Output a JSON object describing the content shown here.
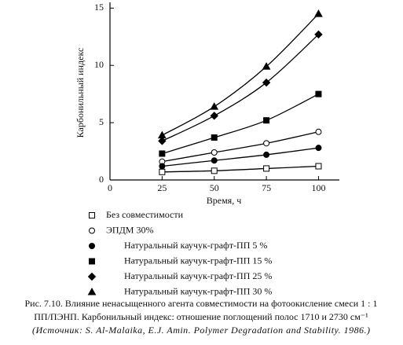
{
  "chart_data": {
    "type": "line",
    "x_label": "Время, ч",
    "y_label": "Карбонильный индекс",
    "x": [
      25,
      50,
      75,
      100
    ],
    "xlim": [
      0,
      110
    ],
    "ylim": [
      0,
      15.5
    ],
    "xticks": [
      0,
      25,
      50,
      75,
      100
    ],
    "yticks": [
      0,
      5,
      10,
      15
    ],
    "series": [
      {
        "name": "Без совместимости",
        "marker": "open-square",
        "color": "#000000",
        "values": [
          0.7,
          0.8,
          1.0,
          1.2
        ]
      },
      {
        "name": "ЭПДМ 30%",
        "marker": "open-circle",
        "color": "#000000",
        "values": [
          1.6,
          2.4,
          3.2,
          4.2
        ]
      },
      {
        "name": "Натуральный каучук-графт-ПП 5 %",
        "marker": "circle",
        "color": "#000000",
        "values": [
          1.2,
          1.7,
          2.2,
          2.8
        ]
      },
      {
        "name": "Натуральный каучук-графт-ПП 15 %",
        "marker": "square",
        "color": "#000000",
        "values": [
          2.3,
          3.7,
          5.2,
          7.5
        ]
      },
      {
        "name": "Натуральный каучук-графт-ПП 25 %",
        "marker": "diamond",
        "color": "#000000",
        "values": [
          3.4,
          5.6,
          8.5,
          12.7
        ]
      },
      {
        "name": "Натуральный каучук-графт-ПП 30 %",
        "marker": "triangle",
        "color": "#000000",
        "values": [
          3.9,
          6.4,
          9.9,
          14.5
        ]
      }
    ],
    "caption": [
      "Рис. 7.10. Влияние ненасыщенного агента совместимости на фотоокисление смеси 1 : 1",
      "ПП/ПЭНП. Карбонильный индекс: отношение поглощений полос 1710 и 2730 см⁻¹",
      "(Источник: S. Al-Malaika, E.J. Amin. Polymer Degradation and Stability. 1986.)"
    ]
  }
}
